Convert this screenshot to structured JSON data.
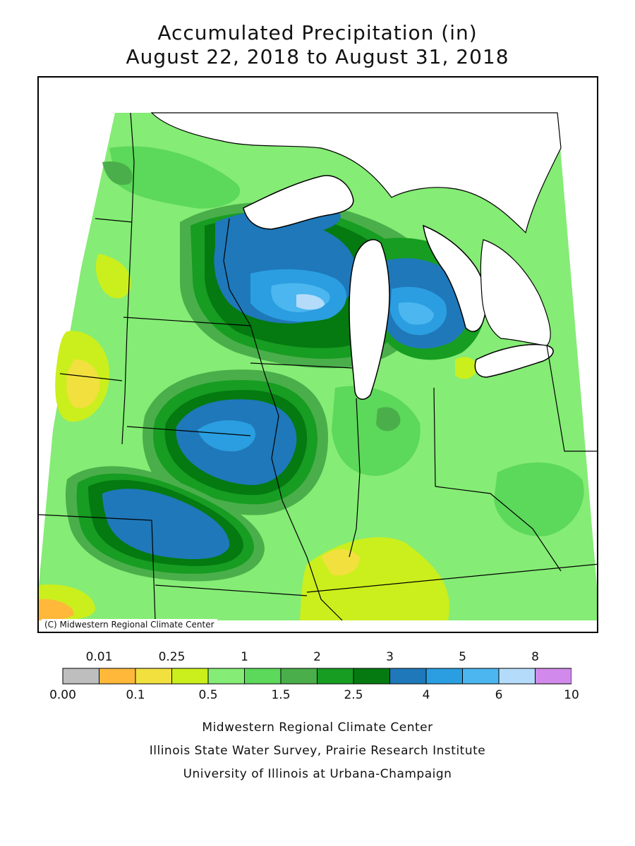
{
  "title": {
    "line1": "Accumulated Precipitation (in)",
    "line2": "August 22, 2018 to August 31, 2018"
  },
  "map": {
    "copyright": "(C) Midwestern Regional Climate Center"
  },
  "legend": {
    "bins": [
      {
        "color": "#bebebe",
        "low": "0.00"
      },
      {
        "color": "#ffb83a",
        "low": "0.01"
      },
      {
        "color": "#f2e03f",
        "low": "0.1"
      },
      {
        "color": "#cbef1c",
        "low": "0.25"
      },
      {
        "color": "#85ec75",
        "low": "0.5"
      },
      {
        "color": "#5cd85a",
        "low": "1"
      },
      {
        "color": "#4aaf4a",
        "low": "1.5"
      },
      {
        "color": "#179d22",
        "low": "2"
      },
      {
        "color": "#047a10",
        "low": "2.5"
      },
      {
        "color": "#1f78b9",
        "low": "3"
      },
      {
        "color": "#2a9ee0",
        "low": "4"
      },
      {
        "color": "#4bb6ef",
        "low": "5"
      },
      {
        "color": "#b4dcfa",
        "low": "6"
      },
      {
        "color": "#d18aeb",
        "low": "8"
      }
    ],
    "top_labels": [
      "0.01",
      "0.25",
      "1",
      "2",
      "3",
      "5",
      "8"
    ],
    "bottom_labels": [
      "0.00",
      "0.1",
      "0.5",
      "1.5",
      "2.5",
      "4",
      "6",
      "10"
    ]
  },
  "footer": {
    "line1": "Midwestern Regional Climate Center",
    "line2": "Illinois State Water Survey, Prairie Research Institute",
    "line3": "University of Illinois at Urbana-Champaign"
  },
  "colors": {
    "lake": "#ffffff",
    "border": "#000000"
  }
}
